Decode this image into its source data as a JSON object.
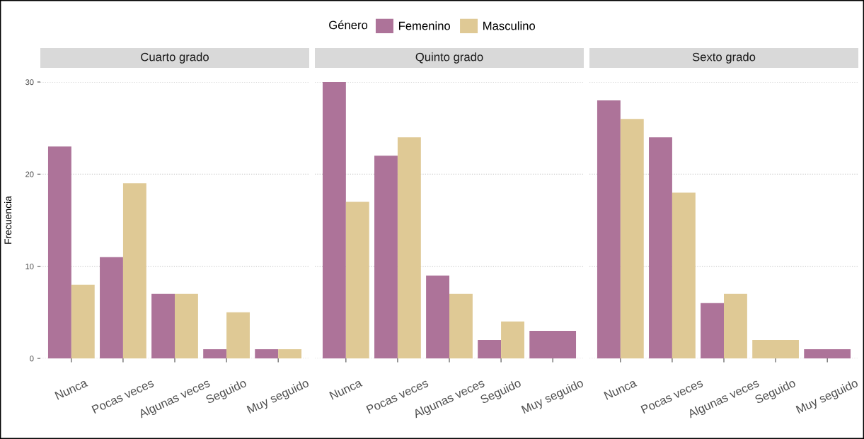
{
  "chart_data": [
    {
      "type": "bar",
      "title": "Cuarto grado",
      "ylabel": "Frecuencia",
      "legend_title": "Género",
      "legend": "top",
      "grid": "y",
      "categories": [
        "Nunca",
        "Pocas veces",
        "Algunas veces",
        "Seguido",
        "Muy seguido"
      ],
      "series": [
        {
          "name": "Femenino",
          "color": "#ad7399",
          "values": [
            23,
            11,
            7,
            1,
            1
          ]
        },
        {
          "name": "Masculino",
          "color": "#dfc995",
          "values": [
            8,
            19,
            7,
            5,
            1
          ]
        }
      ],
      "ylim": [
        0,
        30
      ],
      "yticks": [
        0,
        10,
        20,
        30
      ]
    },
    {
      "type": "bar",
      "title": "Quinto grado",
      "grid": "y",
      "tick_labels": "x",
      "categories": [
        "Nunca",
        "Pocas veces",
        "Algunas veces",
        "Seguido",
        "Muy seguido"
      ],
      "series": [
        {
          "name": "Femenino",
          "color": "#ad7399",
          "values": [
            30,
            22,
            9,
            2,
            3
          ]
        },
        {
          "name": "Masculino",
          "color": "#dfc995",
          "values": [
            17,
            24,
            7,
            4,
            null
          ]
        }
      ],
      "ylim": [
        0,
        30
      ],
      "yticks": [
        0,
        10,
        20,
        30
      ]
    },
    {
      "type": "bar",
      "title": "Sexto grado",
      "grid": "y",
      "tick_labels": "x",
      "categories": [
        "Nunca",
        "Pocas veces",
        "Algunas veces",
        "Seguido",
        "Muy seguido"
      ],
      "series": [
        {
          "name": "Femenino",
          "color": "#ad7399",
          "values": [
            28,
            24,
            6,
            null,
            1
          ]
        },
        {
          "name": "Masculino",
          "color": "#dfc995",
          "values": [
            26,
            18,
            7,
            2,
            null
          ]
        }
      ],
      "ylim": [
        0,
        30
      ],
      "yticks": [
        0,
        10,
        20,
        30
      ]
    }
  ]
}
